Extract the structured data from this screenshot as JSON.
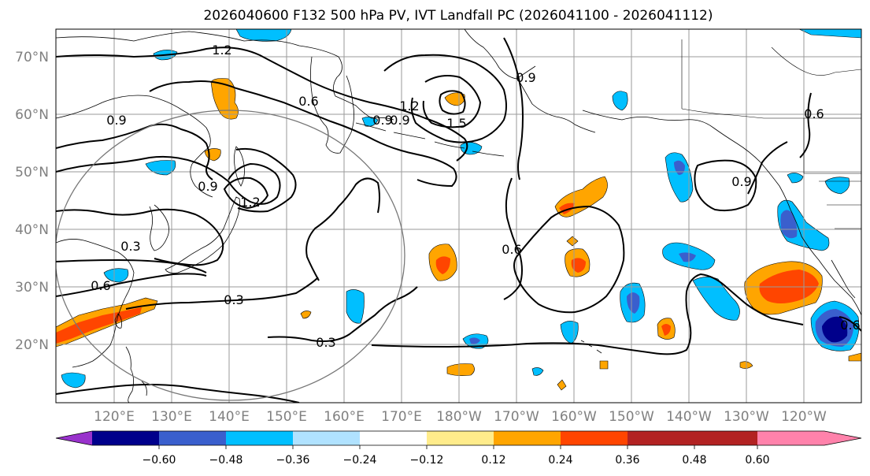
{
  "title": "2026040600 F132 500 hPa PV, IVT Landfall PC (2026041100 - 2026041112)",
  "lat_labels": [
    "70°N",
    "60°N",
    "50°N",
    "40°N",
    "30°N",
    "20°N"
  ],
  "lon_labels": [
    "120°E",
    "130°E",
    "140°E",
    "150°E",
    "160°E",
    "170°E",
    "180°W",
    "170°W",
    "160°W",
    "150°W",
    "140°W",
    "130°W",
    "120°W"
  ],
  "contour_labels": [
    "1.2",
    "0.6",
    "0.9",
    "0.9",
    "1.2",
    "1.5",
    "0.9",
    "0.6",
    "0.9",
    "0.9",
    "1.2",
    "0.9",
    "0.3",
    "0.6",
    "0.3",
    "0.3",
    "0.6",
    "0.6"
  ],
  "colorbar": {
    "ticks": [
      "−0.60",
      "−0.48",
      "−0.36",
      "−0.24",
      "−0.12",
      "0.12",
      "0.24",
      "0.36",
      "0.48",
      "0.60"
    ],
    "colors": {
      "under": "#9932cc",
      "bins": [
        "#00008b",
        "#3a5fcd",
        "#00bfff",
        "#b0e2ff",
        "#ffffff",
        "#ffec8b",
        "#ffa500",
        "#ff4500",
        "#b22222"
      ],
      "over": "#ff82ab"
    }
  }
}
